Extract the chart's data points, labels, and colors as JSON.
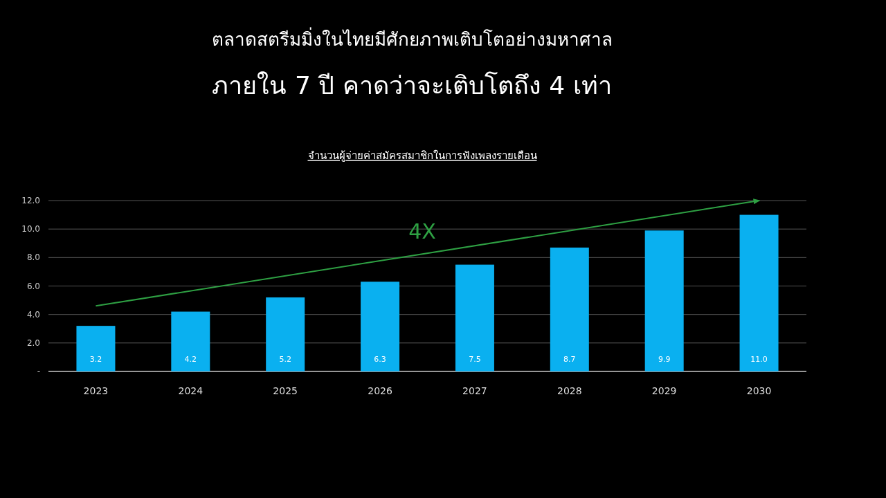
{
  "chart_data": {
    "type": "bar",
    "title": "ตลาดสตรีมมิ่งในไทยมีศักยภาพเติบโตอย่างมหาศาล",
    "subtitle": "ภายใน 7 ปี คาดว่าจะเติบโตถึง 4 เท่า",
    "categories": [
      "2023",
      "2024",
      "2025",
      "2026",
      "2027",
      "2028",
      "2029",
      "2030"
    ],
    "series": [
      {
        "color": "#0ab0f0",
        "values": [
          3.2,
          4.2,
          5.2,
          6.3,
          7.5,
          8.7,
          9.9,
          11.0
        ],
        "value_labels": [
          "3.2",
          "4.2",
          "5.2",
          "6.3",
          "7.5",
          "8.7",
          "9.9",
          "11.0"
        ]
      },
      {
        "type": "line",
        "color": "#2ea043",
        "values": [
          4.6,
          null,
          null,
          null,
          null,
          null,
          null,
          12.0
        ]
      }
    ],
    "annotations": [
      "จำนวนผู้จ่ายค่าสมัครสมาชิกในการฟังเพลงรายเดือน",
      "4X"
    ],
    "ylim": [
      0,
      12
    ],
    "yticks": [
      {
        "value": 0,
        "label": "-"
      },
      {
        "value": 2,
        "label": "2.0"
      },
      {
        "value": 4,
        "label": "4.0"
      },
      {
        "value": 6,
        "label": "6.0"
      },
      {
        "value": 8,
        "label": "8.0"
      },
      {
        "value": 10,
        "label": "10.0"
      },
      {
        "value": 12,
        "label": "12.0"
      }
    ],
    "grid": "y"
  }
}
